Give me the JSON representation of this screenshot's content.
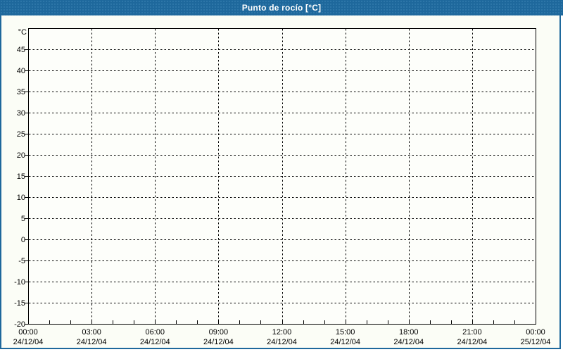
{
  "window": {
    "title": "Punto de rocío [°C]"
  },
  "colors": {
    "titlebar_bg": "#1e689c",
    "titlebar_dot": "#2e77a9",
    "title_text": "#ffffff",
    "window_border": "#1e689c",
    "outer_bg": "#fbfdf6",
    "plot_bg": "#fdfefa",
    "axis_line": "#000000",
    "grid_line": "#000000",
    "label_text": "#000000"
  },
  "chart_data": {
    "type": "line",
    "title": "Punto de rocío [°C]",
    "xlabel": "",
    "ylabel": "°C",
    "y_axis": {
      "unit_label": "°C",
      "min": -20,
      "max": 50,
      "tick_step": 5,
      "tick_labels": [
        "45",
        "40",
        "35",
        "30",
        "25",
        "20",
        "15",
        "10",
        "5",
        "0",
        "-5",
        "-10",
        "-15",
        "-20"
      ]
    },
    "x_axis": {
      "span_hours": 24,
      "minor_step_hours": 1,
      "major_step_hours": 3,
      "major_ticks": [
        {
          "hour": 0,
          "time": "00:00",
          "date": "24/12/04"
        },
        {
          "hour": 3,
          "time": "03:00",
          "date": "24/12/04"
        },
        {
          "hour": 6,
          "time": "06:00",
          "date": "24/12/04"
        },
        {
          "hour": 9,
          "time": "09:00",
          "date": "24/12/04"
        },
        {
          "hour": 12,
          "time": "12:00",
          "date": "24/12/04"
        },
        {
          "hour": 15,
          "time": "15:00",
          "date": "24/12/04"
        },
        {
          "hour": 18,
          "time": "18:00",
          "date": "24/12/04"
        },
        {
          "hour": 21,
          "time": "21:00",
          "date": "24/12/04"
        },
        {
          "hour": 24,
          "time": "00:00",
          "date": "25/12/04"
        }
      ]
    },
    "grid": {
      "dashed": true,
      "horizontal": true,
      "vertical": true
    },
    "legend": null,
    "series": []
  }
}
